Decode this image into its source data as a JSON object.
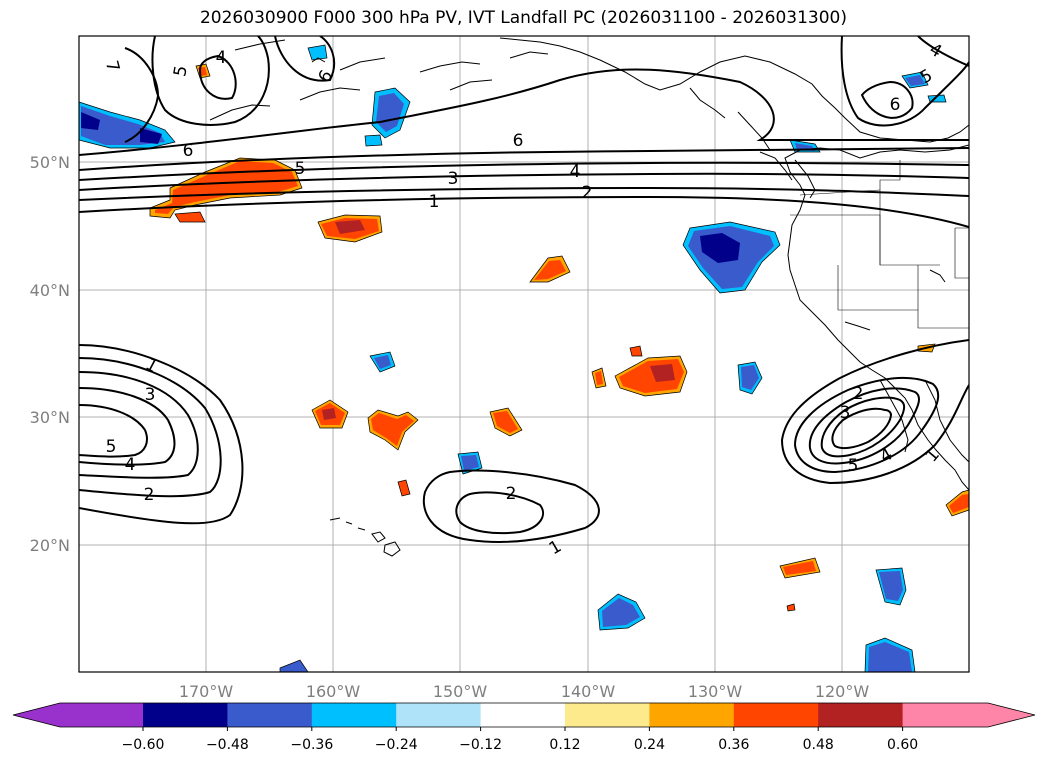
{
  "title": "2026030900 F000 300 hPa PV, IVT Landfall PC (2026031100 - 2026031300)",
  "axes": {
    "lon_ticks": [
      "170°W",
      "160°W",
      "150°W",
      "140°W",
      "130°W",
      "120°W"
    ],
    "lat_ticks": [
      "50°N",
      "40°N",
      "30°N",
      "20°N"
    ]
  },
  "contour_labels": [
    "7",
    "4",
    "5",
    "6",
    "6",
    "6",
    "5",
    "3",
    "1",
    "4",
    "2",
    "6",
    "4",
    "5",
    "6",
    "1",
    "3",
    "5",
    "4",
    "2",
    "2",
    "1",
    "2",
    "3",
    "5",
    "4",
    "1"
  ],
  "colorbar": {
    "ticks": [
      "−0.60",
      "−0.48",
      "−0.36",
      "−0.24",
      "−0.12",
      "0.12",
      "0.24",
      "0.36",
      "0.48",
      "0.60"
    ],
    "colors": [
      "#9932CC",
      "#00008B",
      "#3A5BCC",
      "#00BFFF",
      "#AEE3FA",
      "#FFFFFF",
      "#FDEA8C",
      "#FFA500",
      "#FF4500",
      "#B22222",
      "#FF85A8"
    ]
  }
}
